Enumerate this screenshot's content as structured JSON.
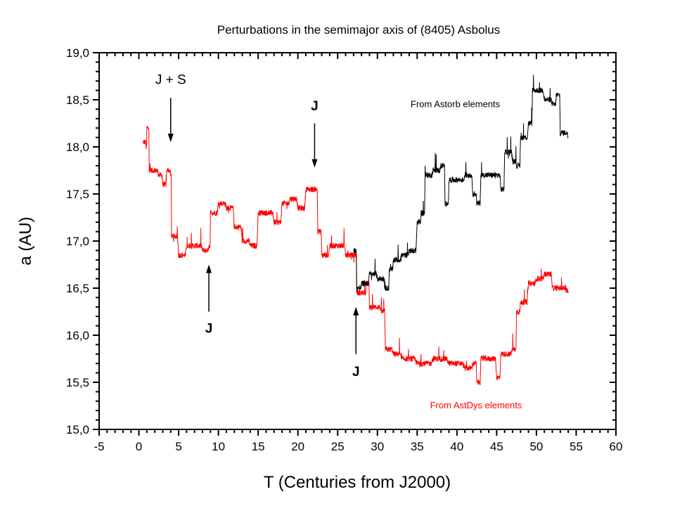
{
  "chart_data": {
    "type": "line",
    "title": "Perturbations in the semimajor axis of (8405) Asbolus",
    "xlabel": "T (Centuries from J2000)",
    "ylabel": "a (AU)",
    "xlim": [
      -5,
      60
    ],
    "ylim": [
      15.0,
      19.0
    ],
    "xticks": [
      "-5",
      "0",
      "5",
      "10",
      "15",
      "20",
      "25",
      "30",
      "35",
      "40",
      "45",
      "50",
      "55",
      "60"
    ],
    "yticks": [
      "15,0",
      "15,5",
      "16,0",
      "16,5",
      "17,0",
      "17,5",
      "18,0",
      "18,5",
      "19,0"
    ],
    "grid": false,
    "series": [
      {
        "name": "From AstDys elements",
        "color": "#ff0000",
        "x": [
          0.5,
          0.9,
          1.0,
          1.3,
          2.5,
          3.0,
          3.5,
          4.0,
          4.1,
          5,
          6,
          7,
          8,
          8.8,
          9,
          10,
          11,
          12,
          13,
          14,
          15,
          16,
          17,
          18,
          19,
          20,
          21,
          22,
          22.5,
          23,
          24,
          25,
          26,
          27,
          27.4,
          28,
          28.6,
          29,
          30.5,
          31,
          32,
          33,
          35,
          37,
          39,
          41,
          42,
          42.5,
          43,
          44,
          45,
          45.5,
          47,
          47.5,
          48,
          49,
          50,
          51,
          52,
          54
        ],
        "y": [
          18.05,
          18.0,
          18.2,
          17.75,
          17.7,
          17.6,
          17.75,
          17.7,
          17.05,
          16.85,
          16.95,
          16.95,
          16.9,
          16.95,
          17.3,
          17.4,
          17.35,
          17.15,
          17.0,
          16.95,
          17.3,
          17.3,
          17.2,
          17.4,
          17.45,
          17.35,
          17.55,
          17.55,
          17.1,
          16.85,
          16.95,
          16.95,
          16.85,
          16.85,
          16.45,
          16.45,
          16.55,
          16.3,
          16.25,
          15.85,
          15.8,
          15.75,
          15.7,
          15.75,
          15.7,
          15.65,
          15.7,
          15.5,
          15.75,
          15.75,
          15.55,
          15.8,
          15.85,
          16.25,
          16.35,
          16.55,
          16.6,
          16.65,
          16.5,
          16.45
        ]
      },
      {
        "name": "From Astorb elements",
        "color": "#000000",
        "x": [
          27,
          27.4,
          28,
          29,
          30,
          31,
          31.5,
          32,
          33,
          34,
          35,
          35.5,
          36,
          37,
          38,
          38.5,
          39,
          40,
          41,
          42,
          42.5,
          43,
          45,
          45.5,
          46,
          47,
          47.5,
          48,
          49,
          49.5,
          50,
          51,
          52,
          52.5,
          53,
          54
        ],
        "y": [
          16.9,
          16.5,
          16.55,
          16.65,
          16.6,
          16.5,
          16.7,
          16.8,
          16.85,
          16.9,
          17.2,
          17.3,
          17.7,
          17.75,
          17.8,
          17.4,
          17.65,
          17.65,
          17.7,
          17.5,
          17.4,
          17.7,
          17.7,
          17.55,
          17.95,
          17.85,
          17.8,
          18.1,
          18.25,
          18.6,
          18.6,
          18.5,
          18.45,
          18.55,
          18.15,
          18.1
        ]
      }
    ],
    "annotations": [
      {
        "text": "J + S",
        "x": 4.0,
        "y": 18.72,
        "arrow": [
          18.52,
          18.05
        ],
        "bold": false
      },
      {
        "text": "J",
        "x": 22.1,
        "y": 18.44,
        "arrow": [
          18.25,
          17.78
        ],
        "bold": true
      },
      {
        "text": "J",
        "x": 8.8,
        "y": 16.08,
        "arrow": [
          16.25,
          16.75
        ],
        "bold": true
      },
      {
        "text": "J",
        "x": 27.3,
        "y": 15.62,
        "arrow": [
          15.8,
          16.3
        ],
        "bold": true
      }
    ],
    "legend": [
      {
        "text": "From Astorb elements",
        "color": "#000000",
        "x": 39.8,
        "y": 18.46
      },
      {
        "text": "From AstDys elements",
        "color": "#ff0000",
        "x": 42.4,
        "y": 15.26
      }
    ]
  }
}
